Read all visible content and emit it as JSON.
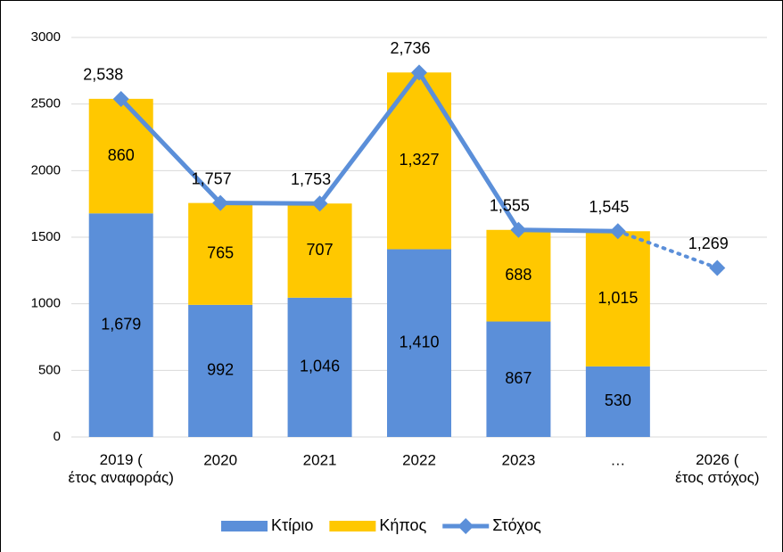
{
  "chart_data": {
    "type": "stacked_bar_line",
    "categories": [
      "2019 (έτος αναφοράς)",
      "2020",
      "2021",
      "2022",
      "2023",
      "…",
      "2026 (έτος στόχος)"
    ],
    "series": [
      {
        "name": "Κτίριο",
        "type": "bar",
        "color": "#5b8fd9",
        "values": [
          1679,
          992,
          1046,
          1410,
          867,
          530,
          null
        ],
        "value_labels": [
          "1,679",
          "992",
          "1,046",
          "1,410",
          "867",
          "530",
          null
        ]
      },
      {
        "name": "Κήπος",
        "type": "bar",
        "color": "#ffc800",
        "values": [
          860,
          765,
          707,
          1327,
          688,
          1015,
          null
        ],
        "value_labels": [
          "860",
          "765",
          "707",
          "1,327",
          "688",
          "1,015",
          null
        ]
      },
      {
        "name": "Στόχος",
        "type": "line",
        "color": "#5b8fd9",
        "values": [
          2538,
          1757,
          1753,
          2736,
          1555,
          1545,
          1269
        ],
        "value_labels": [
          "2,538",
          "1,757",
          "1,753",
          "2,736",
          "1,555",
          "1,545",
          "1,269"
        ],
        "dotted_last_segment": true
      }
    ],
    "ylim": [
      0,
      3000
    ],
    "yticks": [
      0,
      500,
      1000,
      1500,
      2000,
      2500,
      3000
    ],
    "grid": true,
    "legend": "bottom"
  }
}
